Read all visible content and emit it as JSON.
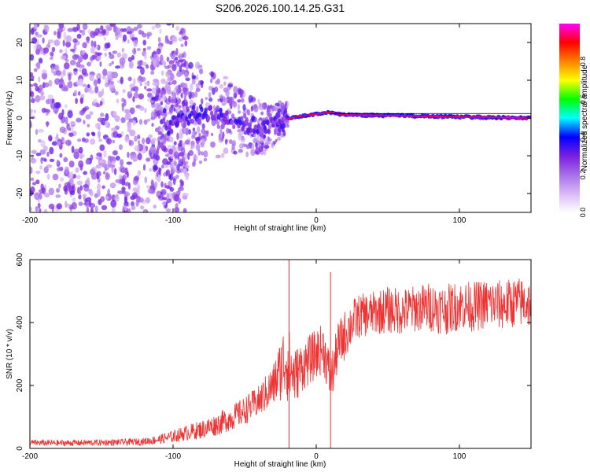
{
  "title": "S206.2026.100.14.25.G31",
  "chart_data": [
    {
      "type": "heatmap",
      "xlabel": "Height of straight line (km)",
      "ylabel": "Frequency (Hz)",
      "xlim": [
        -200,
        150
      ],
      "ylim": [
        -25,
        25
      ],
      "xticks": [
        -200,
        -100,
        0,
        100
      ],
      "yticks": [
        -20,
        -10,
        0,
        10,
        20
      ],
      "grid": false,
      "colorbar": {
        "label": "Normalized spectral amplitude",
        "range": [
          0,
          1
        ],
        "ticks": [
          "0.0",
          "0.2",
          "0.4",
          "0.6",
          "0.8"
        ],
        "colormap": [
          "#ffffff",
          "#d9b8f5",
          "#a66ee8",
          "#7a1ee0",
          "#0000ff",
          "#00ffff",
          "#00ff00",
          "#ffff00",
          "#ff8000",
          "#ff0000",
          "#ff00ff"
        ]
      },
      "ridge": {
        "description_values": [
          {
            "x": -105,
            "y": -2.5
          },
          {
            "x": -90,
            "y": 0.5
          },
          {
            "x": -75,
            "y": 1.5
          },
          {
            "x": -60,
            "y": 0
          },
          {
            "x": -45,
            "y": -2
          },
          {
            "x": -35,
            "y": -3
          },
          {
            "x": -25,
            "y": -0.5
          },
          {
            "x": -10,
            "y": 0.5
          },
          {
            "x": 0,
            "y": 1
          },
          {
            "x": 10,
            "y": 1.5
          },
          {
            "x": 20,
            "y": 0.8
          },
          {
            "x": 60,
            "y": 0.6
          },
          {
            "x": 100,
            "y": 0.3
          },
          {
            "x": 150,
            "y": 0
          }
        ]
      }
    },
    {
      "type": "line",
      "xlabel": "Height of straight line (km)",
      "ylabel": "SNR (10 * v/v)",
      "xlim": [
        -200,
        150
      ],
      "ylim": [
        0,
        600
      ],
      "xticks": [
        -200,
        -100,
        0,
        100
      ],
      "yticks": [
        0,
        200,
        400,
        600
      ],
      "grid": false,
      "series": [
        {
          "color": "#ee3333",
          "x": [
            -200,
            -180,
            -160,
            -140,
            -120,
            -110,
            -100,
            -90,
            -80,
            -70,
            -60,
            -50,
            -40,
            -30,
            -25,
            -21,
            -18,
            -15,
            -10,
            -5,
            0,
            5,
            10,
            12,
            15,
            20,
            25,
            30,
            40,
            50,
            60,
            70,
            80,
            90,
            100,
            110,
            120,
            130,
            140,
            150
          ],
          "values": [
            18,
            17,
            18,
            19,
            22,
            28,
            38,
            50,
            60,
            75,
            95,
            120,
            150,
            200,
            250,
            290,
            250,
            230,
            260,
            280,
            300,
            320,
            220,
            250,
            320,
            360,
            400,
            420,
            430,
            440,
            435,
            445,
            450,
            440,
            455,
            450,
            460,
            455,
            465,
            460
          ],
          "noise": [
            10,
            10,
            10,
            10,
            12,
            15,
            20,
            25,
            30,
            35,
            40,
            45,
            50,
            70,
            100,
            140,
            110,
            90,
            80,
            80,
            80,
            80,
            80,
            80,
            80,
            80,
            75,
            70,
            70,
            75,
            75,
            75,
            80,
            80,
            80,
            80,
            80,
            80,
            80,
            80
          ]
        }
      ],
      "annotations_values": [
        {
          "x": -19,
          "y": 600
        },
        {
          "x": 10,
          "y": 560
        }
      ]
    }
  ]
}
